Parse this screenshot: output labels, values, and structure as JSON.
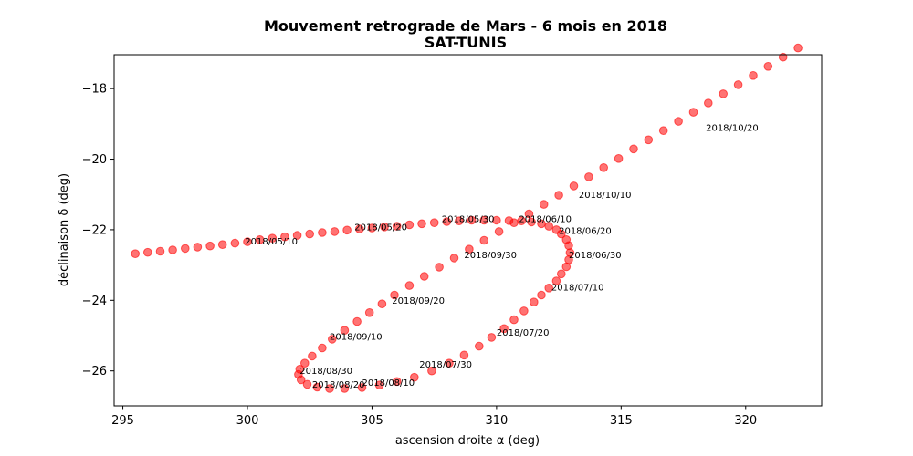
{
  "chart_data": {
    "type": "scatter",
    "title": "Mouvement retrograde de Mars - 6 mois en 2018",
    "subtitle": "SAT-TUNIS",
    "xlabel": "ascension droite α (deg)",
    "ylabel": "déclinaison δ (deg)",
    "xlim": [
      294.65,
      323.05
    ],
    "ylim": [
      -26.99,
      -17.04
    ],
    "xticks": [
      295,
      300,
      305,
      310,
      315,
      320
    ],
    "yticks": [
      -26,
      -24,
      -22,
      -20,
      -18
    ],
    "xtick_labels": [
      "295",
      "300",
      "305",
      "310",
      "315",
      "320"
    ],
    "ytick_labels": [
      "−26",
      "−24",
      "−22",
      "−20",
      "−18"
    ],
    "grid": false,
    "marker_color": "#ff0000",
    "points": [
      [
        295.5,
        -22.68
      ],
      [
        296.0,
        -22.64
      ],
      [
        296.5,
        -22.61
      ],
      [
        297.0,
        -22.57
      ],
      [
        297.5,
        -22.53
      ],
      [
        298.0,
        -22.49
      ],
      [
        298.5,
        -22.46
      ],
      [
        299.0,
        -22.42
      ],
      [
        299.5,
        -22.38
      ],
      [
        300.0,
        -22.34
      ],
      [
        300.5,
        -22.28
      ],
      [
        301.0,
        -22.24
      ],
      [
        301.5,
        -22.2
      ],
      [
        302.0,
        -22.16
      ],
      [
        302.5,
        -22.12
      ],
      [
        303.0,
        -22.08
      ],
      [
        303.5,
        -22.05
      ],
      [
        304.0,
        -22.01
      ],
      [
        304.5,
        -21.98
      ],
      [
        305.0,
        -21.95
      ],
      [
        305.5,
        -21.92
      ],
      [
        306.0,
        -21.9
      ],
      [
        306.5,
        -21.86
      ],
      [
        307.0,
        -21.83
      ],
      [
        307.5,
        -21.8
      ],
      [
        308.0,
        -21.77
      ],
      [
        308.5,
        -21.75
      ],
      [
        309.0,
        -21.73
      ],
      [
        309.5,
        -21.73
      ],
      [
        310.0,
        -21.73
      ],
      [
        310.5,
        -21.74
      ],
      [
        311.0,
        -21.75
      ],
      [
        311.4,
        -21.78
      ],
      [
        311.8,
        -21.83
      ],
      [
        312.1,
        -21.9
      ],
      [
        312.4,
        -22.0
      ],
      [
        312.6,
        -22.12
      ],
      [
        312.8,
        -22.28
      ],
      [
        312.9,
        -22.45
      ],
      [
        312.95,
        -22.65
      ],
      [
        312.9,
        -22.85
      ],
      [
        312.8,
        -23.05
      ],
      [
        312.6,
        -23.25
      ],
      [
        312.4,
        -23.45
      ],
      [
        312.1,
        -23.65
      ],
      [
        311.8,
        -23.85
      ],
      [
        311.5,
        -24.05
      ],
      [
        311.1,
        -24.3
      ],
      [
        310.7,
        -24.55
      ],
      [
        310.3,
        -24.8
      ],
      [
        309.8,
        -25.05
      ],
      [
        309.3,
        -25.3
      ],
      [
        308.7,
        -25.55
      ],
      [
        308.1,
        -25.78
      ],
      [
        307.4,
        -26.0
      ],
      [
        306.7,
        -26.18
      ],
      [
        306.0,
        -26.3
      ],
      [
        305.3,
        -26.4
      ],
      [
        304.6,
        -26.47
      ],
      [
        303.9,
        -26.5
      ],
      [
        303.3,
        -26.5
      ],
      [
        302.8,
        -26.46
      ],
      [
        302.4,
        -26.38
      ],
      [
        302.15,
        -26.25
      ],
      [
        302.05,
        -26.1
      ],
      [
        302.1,
        -25.95
      ],
      [
        302.3,
        -25.78
      ],
      [
        302.6,
        -25.58
      ],
      [
        303.0,
        -25.35
      ],
      [
        303.4,
        -25.1
      ],
      [
        303.9,
        -24.85
      ],
      [
        304.4,
        -24.6
      ],
      [
        304.9,
        -24.35
      ],
      [
        305.4,
        -24.1
      ],
      [
        305.9,
        -23.85
      ],
      [
        306.5,
        -23.58
      ],
      [
        307.1,
        -23.32
      ],
      [
        307.7,
        -23.06
      ],
      [
        308.3,
        -22.8
      ],
      [
        308.9,
        -22.55
      ],
      [
        309.5,
        -22.3
      ],
      [
        310.1,
        -22.05
      ],
      [
        310.7,
        -21.8
      ],
      [
        311.3,
        -21.55
      ],
      [
        311.9,
        -21.28
      ],
      [
        312.5,
        -21.02
      ],
      [
        313.1,
        -20.76
      ],
      [
        313.7,
        -20.5
      ],
      [
        314.3,
        -20.24
      ],
      [
        314.9,
        -19.98
      ],
      [
        315.5,
        -19.71
      ],
      [
        316.1,
        -19.45
      ],
      [
        316.7,
        -19.19
      ],
      [
        317.3,
        -18.93
      ],
      [
        317.9,
        -18.67
      ],
      [
        318.5,
        -18.41
      ],
      [
        319.1,
        -18.15
      ],
      [
        319.7,
        -17.89
      ],
      [
        320.3,
        -17.63
      ],
      [
        320.9,
        -17.37
      ],
      [
        321.5,
        -17.11
      ],
      [
        322.1,
        -16.85
      ]
    ],
    "annotations": [
      {
        "text": "2018/05/10",
        "x": 299.9,
        "y": -22.42
      },
      {
        "text": "2018/05/20",
        "x": 304.3,
        "y": -22.02
      },
      {
        "text": "2018/05/30",
        "x": 307.8,
        "y": -21.78
      },
      {
        "text": "2018/06/10",
        "x": 310.9,
        "y": -21.78
      },
      {
        "text": "2018/06/20",
        "x": 312.5,
        "y": -22.12
      },
      {
        "text": "2018/06/30",
        "x": 312.9,
        "y": -22.8
      },
      {
        "text": "2018/07/10",
        "x": 312.2,
        "y": -23.72
      },
      {
        "text": "2018/07/20",
        "x": 310.0,
        "y": -25.0
      },
      {
        "text": "2018/07/30",
        "x": 306.9,
        "y": -25.9
      },
      {
        "text": "2018/08/10",
        "x": 304.6,
        "y": -26.42
      },
      {
        "text": "2018/08/20",
        "x": 302.6,
        "y": -26.47
      },
      {
        "text": "2018/08/30",
        "x": 302.1,
        "y": -26.08
      },
      {
        "text": "2018/09/10",
        "x": 303.3,
        "y": -25.12
      },
      {
        "text": "2018/09/20",
        "x": 305.8,
        "y": -24.1
      },
      {
        "text": "2018/09/30",
        "x": 308.7,
        "y": -22.8
      },
      {
        "text": "2018/10/10",
        "x": 313.3,
        "y": -21.1
      },
      {
        "text": "2018/10/20",
        "x": 318.4,
        "y": -19.2
      }
    ]
  }
}
